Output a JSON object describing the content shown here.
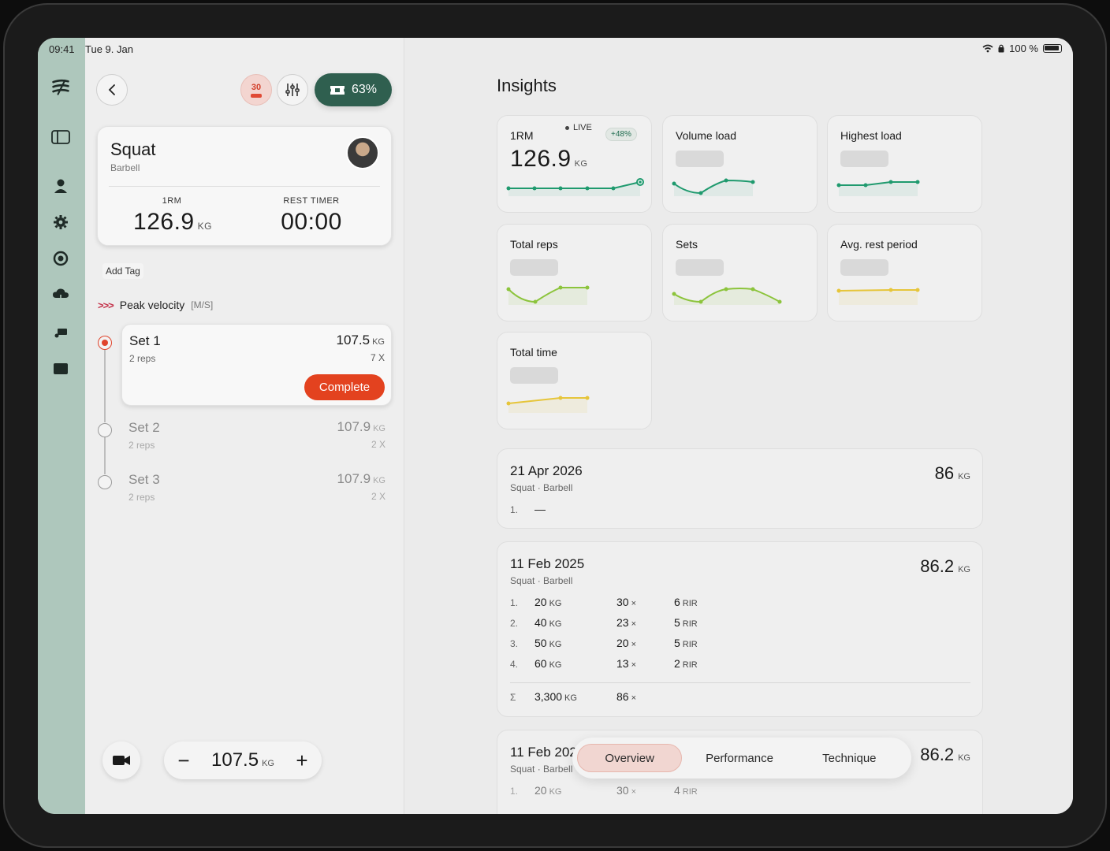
{
  "status": {
    "time": "09:41",
    "date": "Tue 9. Jan",
    "battery": "100 %"
  },
  "header": {
    "timer_badge": "30",
    "progress_label": "63%"
  },
  "exercise": {
    "name": "Squat",
    "equipment": "Barbell",
    "one_rm_label": "1RM",
    "one_rm_value": "126.9",
    "one_rm_unit": "KG",
    "rest_label": "REST TIMER",
    "rest_value": "00:00"
  },
  "add_tag": "Add Tag",
  "peak_velocity": {
    "arrows": ">>>",
    "label": "Peak velocity",
    "unit": "[M/S]"
  },
  "sets": [
    {
      "name": "Set 1",
      "reps": "2 reps",
      "weight": "107.5",
      "unit": "KG",
      "mult": "7 X",
      "action": "Complete"
    },
    {
      "name": "Set 2",
      "reps": "2 reps",
      "weight": "107.9",
      "unit": "KG",
      "mult": "2 X"
    },
    {
      "name": "Set 3",
      "reps": "2 reps",
      "weight": "107.9",
      "unit": "KG",
      "mult": "2 X"
    }
  ],
  "stepper": {
    "minus": "−",
    "value": "107.5",
    "unit": "KG",
    "plus": "+"
  },
  "insights": {
    "title": "Insights",
    "metrics": [
      {
        "label": "1RM",
        "value": "126.9",
        "unit": "KG",
        "live": "LIVE",
        "delta": "+48%",
        "color": "#1f9a6e"
      },
      {
        "label": "Volume load",
        "color": "#1f9a6e"
      },
      {
        "label": "Highest load",
        "color": "#1f9a6e"
      },
      {
        "label": "Total reps",
        "color": "#8cc43c"
      },
      {
        "label": "Sets",
        "color": "#8cc43c"
      },
      {
        "label": "Avg. rest period",
        "color": "#e6c53a"
      },
      {
        "label": "Total time",
        "color": "#e6c53a"
      }
    ]
  },
  "history": [
    {
      "date": "21 Apr 2026",
      "sub": "Squat · Barbell",
      "total": "86",
      "unit": "KG",
      "rows": [
        {
          "idx": "1.",
          "w": "—"
        }
      ]
    },
    {
      "date": "11 Feb 2025",
      "sub": "Squat · Barbell",
      "total": "86.2",
      "unit": "KG",
      "rows": [
        {
          "idx": "1.",
          "w": "20",
          "r": "30",
          "rir": "6"
        },
        {
          "idx": "2.",
          "w": "40",
          "r": "23",
          "rir": "5"
        },
        {
          "idx": "3.",
          "w": "50",
          "r": "20",
          "rir": "5"
        },
        {
          "idx": "4.",
          "w": "60",
          "r": "13",
          "rir": "2"
        }
      ],
      "sum": {
        "idx": "Σ",
        "w": "3,300",
        "r": "86"
      }
    },
    {
      "date": "11 Feb 2025",
      "sub": "Squat · Barbell",
      "total": "86.2",
      "unit": "KG",
      "rows": [
        {
          "idx": "1.",
          "w": "20",
          "r": "30",
          "rir": "4"
        }
      ]
    }
  ],
  "units": {
    "kg": "KG",
    "x": "×",
    "rir": "RIR"
  },
  "tabs": [
    "Overview",
    "Performance",
    "Technique"
  ],
  "active_tab": "Overview"
}
